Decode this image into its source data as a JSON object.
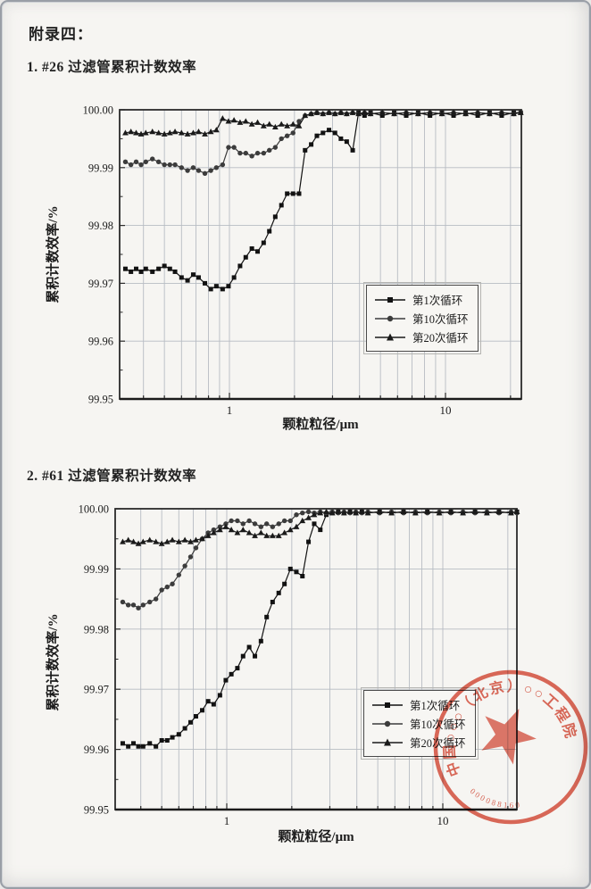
{
  "page": {
    "appendix_title": "附录四：",
    "sections": [
      {
        "heading": "1. #26 过滤管累积计数效率"
      },
      {
        "heading": "2. #61 过滤管累积计数效率"
      }
    ]
  },
  "stamp": {
    "ring_text": "中国○○○（北京）○○工程院",
    "serial": "000088160",
    "color": "#d84b38"
  },
  "chart_data": [
    {
      "type": "line",
      "title": "#26 过滤管累积计数效率",
      "xlabel": "颗粒粒径/μm",
      "ylabel": "累积计数效率/%",
      "xscale": "log",
      "xlim": [
        0.31,
        22.4
      ],
      "ylim": [
        99.95,
        100.0
      ],
      "ytick_labels": [
        "100.00",
        "99.99",
        "99.98",
        "99.97",
        "99.96",
        "99.95"
      ],
      "xticks": [
        {
          "v": 1,
          "label": "1"
        },
        {
          "v": 10,
          "label": "10"
        }
      ],
      "grid": true,
      "legend_position": "right-center",
      "x": [
        0.33,
        0.35,
        0.37,
        0.39,
        0.41,
        0.44,
        0.47,
        0.5,
        0.53,
        0.56,
        0.6,
        0.64,
        0.68,
        0.72,
        0.77,
        0.82,
        0.87,
        0.93,
        0.99,
        1.05,
        1.12,
        1.19,
        1.27,
        1.35,
        1.44,
        1.53,
        1.63,
        1.74,
        1.85,
        1.97,
        2.1,
        2.24,
        2.39,
        2.54,
        2.71,
        2.89,
        3.08,
        3.28,
        3.49,
        3.72,
        3.96,
        4.22,
        4.5,
        5.1,
        5.79,
        6.58,
        7.47,
        8.48,
        9.63,
        10.9,
        12.4,
        14.1,
        16.0,
        18.2,
        20.7,
        22.3
      ],
      "series": [
        {
          "name": "第1次循环",
          "marker": "square",
          "color": "#121212",
          "values": [
            99.9725,
            99.972,
            99.9725,
            99.972,
            99.9725,
            99.972,
            99.9725,
            99.973,
            99.9725,
            99.972,
            99.971,
            99.9705,
            99.9715,
            99.971,
            99.97,
            99.969,
            99.9695,
            99.969,
            99.9695,
            99.971,
            99.973,
            99.9745,
            99.976,
            99.9755,
            99.977,
            99.979,
            99.9815,
            99.9835,
            99.9855,
            99.9855,
            99.9855,
            99.993,
            99.994,
            99.9955,
            99.996,
            99.9965,
            99.996,
            99.995,
            99.9945,
            99.993,
            99.9995,
            99.999,
            99.9995,
            99.999,
            99.9995,
            99.999,
            99.9995,
            99.999,
            99.9995,
            99.999,
            99.9995,
            99.999,
            99.9995,
            99.999,
            99.9995,
            99.9995
          ]
        },
        {
          "name": "第10次循环",
          "marker": "circle",
          "color": "#3c3c3c",
          "values": [
            99.991,
            99.9905,
            99.991,
            99.9905,
            99.991,
            99.9915,
            99.991,
            99.9905,
            99.9905,
            99.9905,
            99.99,
            99.9895,
            99.99,
            99.9895,
            99.989,
            99.9895,
            99.99,
            99.9905,
            99.9935,
            99.9935,
            99.9925,
            99.9925,
            99.992,
            99.9925,
            99.9925,
            99.993,
            99.9935,
            99.995,
            99.9955,
            99.996,
            99.998,
            99.999,
            99.9993,
            99.9995,
            99.9993,
            99.9995,
            99.9993,
            99.9995,
            99.9993,
            99.9995,
            99.9993,
            99.9995,
            99.9993,
            99.9995,
            99.9993,
            99.9995,
            99.9993,
            99.9995,
            99.9993,
            99.9995,
            99.9993,
            99.9995,
            99.9993,
            99.9995,
            99.9993,
            99.9995
          ]
        },
        {
          "name": "第20次循环",
          "marker": "triangle",
          "color": "#1a1a1a",
          "values": [
            99.996,
            99.9962,
            99.996,
            99.9958,
            99.996,
            99.9962,
            99.996,
            99.9958,
            99.996,
            99.9962,
            99.996,
            99.9958,
            99.996,
            99.9962,
            99.9958,
            99.9962,
            99.9965,
            99.9985,
            99.998,
            99.9982,
            99.9978,
            99.998,
            99.9975,
            99.9978,
            99.9972,
            99.9975,
            99.997,
            99.9975,
            99.9972,
            99.9975,
            99.9972,
            99.999,
            99.9993,
            99.9995,
            99.9993,
            99.9995,
            99.9993,
            99.9995,
            99.9993,
            99.9995,
            99.9993,
            99.9995,
            99.9993,
            99.9995,
            99.9993,
            99.9995,
            99.9993,
            99.9995,
            99.9993,
            99.9995,
            99.9993,
            99.9995,
            99.9993,
            99.9995,
            99.9993,
            99.9995
          ]
        }
      ]
    },
    {
      "type": "line",
      "title": "#61 过滤管累积计数效率",
      "xlabel": "颗粒粒径/μm",
      "ylabel": "累积计数效率/%",
      "xscale": "log",
      "xlim": [
        0.3,
        22.4
      ],
      "ylim": [
        99.95,
        100.0
      ],
      "ytick_labels": [
        "100.00",
        "99.99",
        "99.98",
        "99.97",
        "99.96",
        "99.95"
      ],
      "xticks": [
        {
          "v": 1,
          "label": "1"
        },
        {
          "v": 10,
          "label": "10"
        }
      ],
      "grid": true,
      "legend_position": "right-center",
      "x": [
        0.33,
        0.35,
        0.37,
        0.39,
        0.41,
        0.44,
        0.47,
        0.5,
        0.53,
        0.56,
        0.6,
        0.64,
        0.68,
        0.72,
        0.77,
        0.82,
        0.87,
        0.93,
        0.99,
        1.05,
        1.12,
        1.19,
        1.27,
        1.35,
        1.44,
        1.53,
        1.63,
        1.74,
        1.85,
        1.97,
        2.1,
        2.24,
        2.39,
        2.54,
        2.71,
        2.89,
        3.08,
        3.28,
        3.49,
        3.72,
        3.96,
        4.22,
        4.5,
        5.1,
        5.79,
        6.58,
        7.47,
        8.48,
        9.63,
        10.9,
        12.4,
        14.1,
        16.0,
        18.2,
        20.7,
        22.3
      ],
      "series": [
        {
          "name": "第1次循环",
          "marker": "square",
          "color": "#121212",
          "values": [
            99.961,
            99.9605,
            99.961,
            99.9605,
            99.9605,
            99.961,
            99.9605,
            99.9615,
            99.9615,
            99.962,
            99.9625,
            99.9635,
            99.9645,
            99.9655,
            99.9665,
            99.968,
            99.9675,
            99.969,
            99.9715,
            99.9725,
            99.9735,
            99.9755,
            99.977,
            99.9755,
            99.978,
            99.982,
            99.9845,
            99.986,
            99.9875,
            99.99,
            99.9895,
            99.9888,
            99.9945,
            99.9975,
            99.9965,
            99.999,
            99.9993,
            99.9995,
            99.9993,
            99.9995,
            99.9993,
            99.9995,
            99.9993,
            99.9995,
            99.9993,
            99.9995,
            99.9993,
            99.9995,
            99.9993,
            99.9995,
            99.9993,
            99.9995,
            99.9993,
            99.9995,
            99.9993,
            99.9995
          ]
        },
        {
          "name": "第10次循环",
          "marker": "circle",
          "color": "#3c3c3c",
          "values": [
            99.9845,
            99.984,
            99.984,
            99.9835,
            99.984,
            99.9845,
            99.985,
            99.9865,
            99.987,
            99.9875,
            99.989,
            99.9905,
            99.992,
            99.9935,
            99.995,
            99.996,
            99.9965,
            99.997,
            99.9975,
            99.998,
            99.998,
            99.9975,
            99.998,
            99.9975,
            99.997,
            99.9975,
            99.997,
            99.9975,
            99.998,
            99.998,
            99.999,
            99.9993,
            99.9995,
            99.9993,
            99.9995,
            99.9993,
            99.9995,
            99.9993,
            99.9995,
            99.9993,
            99.9995,
            99.9993,
            99.9995,
            99.9993,
            99.9995,
            99.9993,
            99.9995,
            99.9993,
            99.9995,
            99.9993,
            99.9995,
            99.9993,
            99.9995,
            99.9993,
            99.9995,
            99.9993
          ]
        },
        {
          "name": "第20次循环",
          "marker": "triangle",
          "color": "#1a1a1a",
          "values": [
            99.9945,
            99.9948,
            99.9945,
            99.9942,
            99.9945,
            99.9948,
            99.9945,
            99.9942,
            99.9945,
            99.9948,
            99.9945,
            99.9948,
            99.9945,
            99.9948,
            99.995,
            99.9955,
            99.996,
            99.9965,
            99.997,
            99.9965,
            99.996,
            99.9965,
            99.996,
            99.9955,
            99.996,
            99.9955,
            99.9955,
            99.9955,
            99.996,
            99.9965,
            99.997,
            99.998,
            99.9985,
            99.999,
            99.9993,
            99.9995,
            99.9993,
            99.9995,
            99.9993,
            99.9995,
            99.9993,
            99.9995,
            99.9993,
            99.9995,
            99.9993,
            99.9995,
            99.9993,
            99.9995,
            99.9993,
            99.9995,
            99.9993,
            99.9995,
            99.9993,
            99.9995,
            99.9993,
            99.9995
          ]
        }
      ]
    }
  ]
}
